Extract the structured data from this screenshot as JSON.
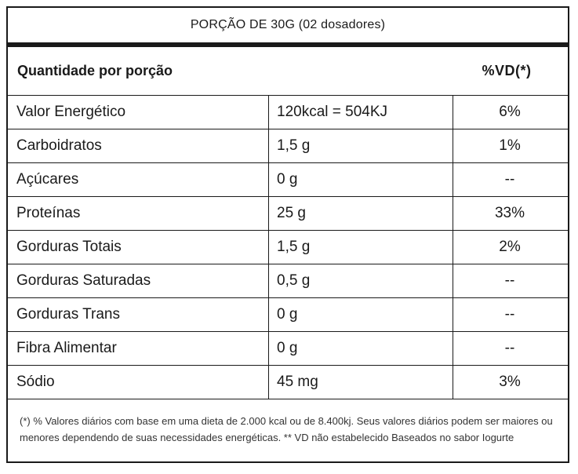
{
  "portion": "PORÇÃO DE 30G (02 dosadores)",
  "header": {
    "label": "Quantidade por porção",
    "vd": "%VD(*)"
  },
  "rows": [
    {
      "name": "Valor Energético",
      "qty": "120kcal = 504KJ",
      "vd": "6%"
    },
    {
      "name": "Carboidratos",
      "qty": "1,5 g",
      "vd": "1%"
    },
    {
      "name": "Açúcares",
      "qty": "0 g",
      "vd": "--"
    },
    {
      "name": "Proteínas",
      "qty": "25 g",
      "vd": "33%"
    },
    {
      "name": "Gorduras Totais",
      "qty": "1,5 g",
      "vd": "2%"
    },
    {
      "name": "Gorduras Saturadas",
      "qty": "0,5 g",
      "vd": "--"
    },
    {
      "name": "Gorduras Trans",
      "qty": "0 g",
      "vd": "--"
    },
    {
      "name": "Fibra Alimentar",
      "qty": "0 g",
      "vd": "--"
    },
    {
      "name": "Sódio",
      "qty": "45 mg",
      "vd": "3%"
    }
  ],
  "footnote": "(*) % Valores diários com base em uma dieta de 2.000 kcal ou de 8.400kj. Seus valores diários podem ser maiores ou menores dependendo de suas necessidades energéticas. ** VD não estabelecido Baseados no sabor Iogurte"
}
